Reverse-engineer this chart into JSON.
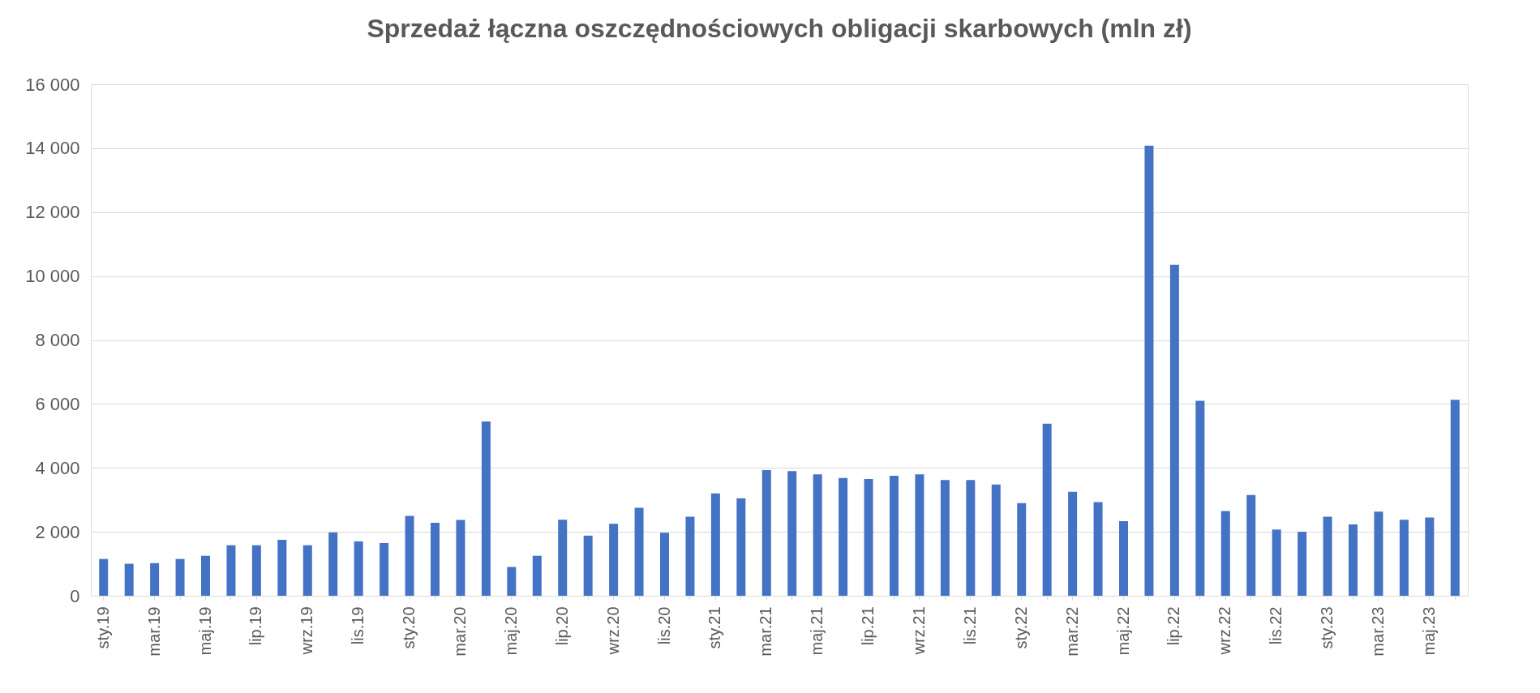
{
  "chart_data": {
    "type": "bar",
    "title": "Sprzedaż łączna oszczędnościowych obligacji skarbowych (mln zł)",
    "categories": [
      "sty.19",
      null,
      "mar.19",
      null,
      "maj.19",
      null,
      "lip.19",
      null,
      "wrz.19",
      null,
      "lis.19",
      null,
      "sty.20",
      null,
      "mar.20",
      null,
      "maj.20",
      null,
      "lip.20",
      null,
      "wrz.20",
      null,
      "lis.20",
      null,
      "sty.21",
      null,
      "mar.21",
      null,
      "maj.21",
      null,
      "lip.21",
      null,
      "wrz.21",
      null,
      "lis.21",
      null,
      "sty.22",
      null,
      "mar.22",
      null,
      "maj.22",
      null,
      "lip.22",
      null,
      "wrz.22",
      null,
      "lis.22",
      null,
      "sty.23",
      null,
      "mar.23",
      null,
      "maj.23",
      null
    ],
    "values": [
      1150,
      1000,
      1020,
      1150,
      1250,
      1580,
      1580,
      1750,
      1580,
      1980,
      1700,
      1650,
      2500,
      2280,
      2370,
      5450,
      900,
      1250,
      2380,
      1880,
      2250,
      2750,
      1970,
      2470,
      3200,
      3050,
      3930,
      3900,
      3800,
      3680,
      3650,
      3750,
      3800,
      3620,
      3620,
      3480,
      2900,
      5380,
      3250,
      2930,
      2330,
      14080,
      10350,
      6100,
      2650,
      3150,
      2070,
      2000,
      2470,
      2230,
      2630,
      2380,
      2450,
      6130
    ],
    "color": "#4472c4",
    "ylim": [
      0,
      16000
    ],
    "yticks": [
      0,
      {
        "value": 2000,
        "label": "2 000"
      },
      {
        "value": 4000,
        "label": "4 000"
      },
      {
        "value": 6000,
        "label": "6 000"
      },
      {
        "value": 8000,
        "label": "8 000"
      },
      {
        "value": 10000,
        "label": "10 000"
      },
      {
        "value": 12000,
        "label": "12 000"
      },
      {
        "value": 14000,
        "label": "14 000"
      },
      {
        "value": 16000,
        "label": "16 000"
      }
    ],
    "grid": "y"
  }
}
